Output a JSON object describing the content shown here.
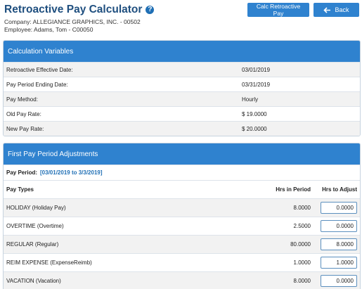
{
  "header": {
    "title": "Retroactive Pay Calculator",
    "help_glyph": "?",
    "company": "Company: ALLEGIANCE GRAPHICS, INC. - 00502",
    "employee": "Employee: Adams, Tom - C00050"
  },
  "buttons": {
    "calc": "Calc Retroactive Pay",
    "back": "Back",
    "back_icon": "arrow-left-icon"
  },
  "calc_vars": {
    "heading": "Calculation Variables",
    "rows": [
      {
        "label": "Retroactive Effective Date:",
        "value": "03/01/2019"
      },
      {
        "label": "Pay Period Ending Date:",
        "value": "03/31/2019"
      },
      {
        "label": "Pay Method:",
        "value": "Hourly"
      },
      {
        "label": "Old Pay Rate:",
        "value": "$ 19.0000"
      },
      {
        "label": "New Pay Rate:",
        "value": "$ 20.0000"
      }
    ]
  },
  "first_period": {
    "heading": "First Pay Period Adjustments",
    "period_label": "Pay Period:",
    "period_value": "[03/01/2019 to 3/3/2019]",
    "columns": {
      "pay_types": "Pay Types",
      "hrs_in_period": "Hrs in Period",
      "hrs_to_adjust": "Hrs to Adjust"
    },
    "rows": [
      {
        "type": "HOLIDAY (Holiday Pay)",
        "hrs": "8.0000",
        "adjust": "0.0000"
      },
      {
        "type": "OVERTIME (Overtime)",
        "hrs": "2.5000",
        "adjust": "0.0000"
      },
      {
        "type": "REGULAR (Regular)",
        "hrs": "80.0000",
        "adjust": "8.0000"
      },
      {
        "type": "REIM EXPENSE (ExpenseReimb)",
        "hrs": "1.0000",
        "adjust": "1.0000"
      },
      {
        "type": "VACATION (Vacation)",
        "hrs": "8.0000",
        "adjust": "0.0000"
      }
    ]
  },
  "colors": {
    "accent": "#2f82cf",
    "title": "#1f4f7f"
  }
}
